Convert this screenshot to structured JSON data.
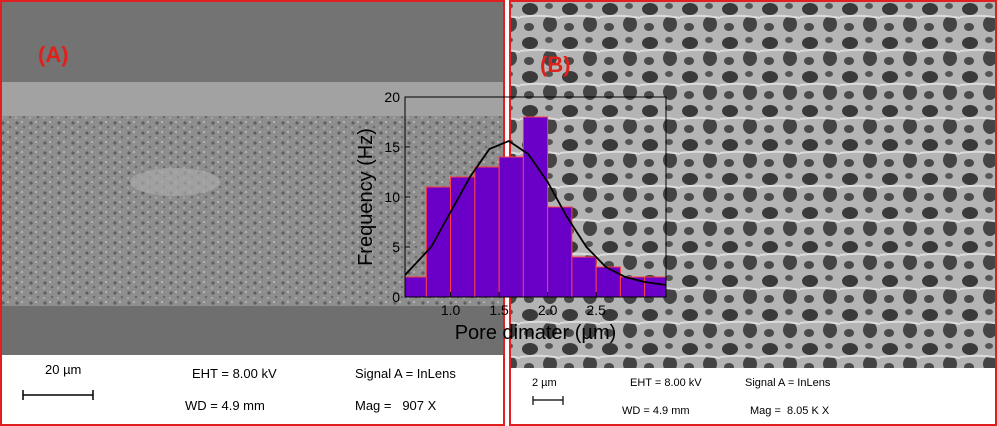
{
  "panels": [
    {
      "label": "(A)",
      "scale_bar": "20 µm",
      "eht": "EHT = 8.00 kV",
      "wd": "WD = 4.9 mm",
      "signal": "Signal A = InLens",
      "mag": "Mag =   907 X"
    },
    {
      "label": "(B)",
      "scale_bar": "2 µm",
      "eht": "EHT = 8.00 kV",
      "wd": "WD = 4.9 mm",
      "signal": "Signal A = InLens",
      "mag": "Mag =  8.05 K X"
    }
  ],
  "chart_data": {
    "type": "histogram",
    "xlabel": "Pore dimater (µm)",
    "ylabel": "Frequency (Hz)",
    "bins": [
      0.53,
      0.75,
      1.0,
      1.25,
      1.5,
      1.75,
      2.0,
      2.25,
      2.5,
      2.75,
      3.0,
      3.22
    ],
    "counts": [
      2,
      11,
      12,
      13,
      14,
      18,
      9,
      4,
      3,
      2,
      2
    ],
    "color": "#6a00c8",
    "edgecolor": "#ff4040",
    "fit": {
      "color": "#000000",
      "x": [
        0.53,
        0.8,
        1.0,
        1.2,
        1.4,
        1.6,
        1.8,
        2.0,
        2.2,
        2.4,
        2.6,
        2.8,
        3.0,
        3.22
      ],
      "y": [
        2.2,
        5,
        8.5,
        12,
        14.8,
        15.6,
        14.3,
        11.5,
        8,
        5,
        3,
        2,
        1.5,
        1.2
      ]
    },
    "xlim": [
      0.53,
      3.22
    ],
    "ylim": [
      0,
      20
    ],
    "xticks": [
      {
        "value": 1,
        "label": "1.0"
      },
      {
        "value": 1.5,
        "label": "1.5"
      },
      {
        "value": 2,
        "label": "2.0"
      },
      {
        "value": 2.5,
        "label": "2.5"
      }
    ],
    "yticks": [
      0,
      5,
      10,
      15,
      20
    ]
  }
}
